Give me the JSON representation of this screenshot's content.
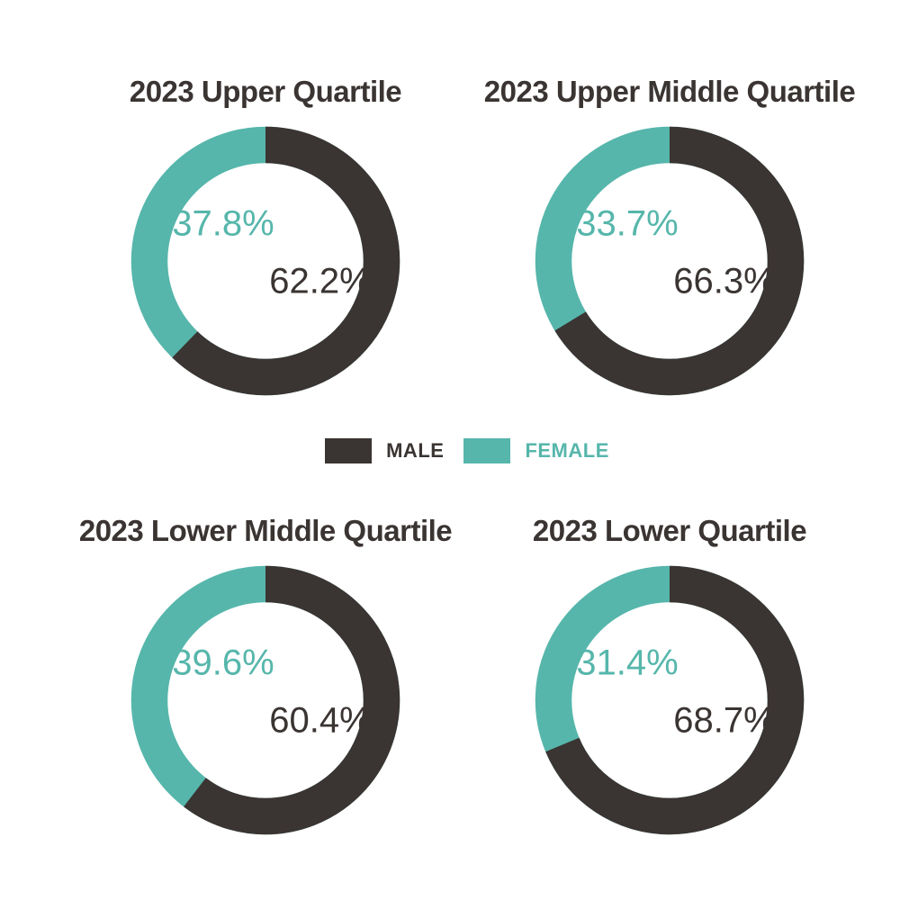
{
  "colors": {
    "male": "#3a3432",
    "female": "#56b6ab",
    "background": "#ffffff"
  },
  "legend": {
    "items": [
      {
        "label": "MALE",
        "color": "#3a3432"
      },
      {
        "label": "FEMALE",
        "color": "#56b6ab"
      }
    ]
  },
  "chart_data": [
    {
      "type": "pie",
      "donut": true,
      "title": "2023 Upper Quartile",
      "categories": [
        "MALE",
        "FEMALE"
      ],
      "values": [
        62.2,
        37.8
      ],
      "labels": {
        "male": "62.2%",
        "female": "37.8%"
      },
      "unit": "%",
      "start_angle": "top",
      "direction": "male-clockwise-from-top",
      "legend_position": "center-between-rows"
    },
    {
      "type": "pie",
      "donut": true,
      "title": "2023 Upper Middle Quartile",
      "categories": [
        "MALE",
        "FEMALE"
      ],
      "values": [
        66.3,
        33.7
      ],
      "labels": {
        "male": "66.3%",
        "female": "33.7%"
      },
      "unit": "%",
      "start_angle": "top",
      "direction": "male-clockwise-from-top",
      "legend_position": "center-between-rows"
    },
    {
      "type": "pie",
      "donut": true,
      "title": "2023 Lower Middle Quartile",
      "categories": [
        "MALE",
        "FEMALE"
      ],
      "values": [
        60.4,
        39.6
      ],
      "labels": {
        "male": "60.4%",
        "female": "39.6%"
      },
      "unit": "%",
      "start_angle": "top",
      "direction": "male-clockwise-from-top",
      "legend_position": "center-between-rows"
    },
    {
      "type": "pie",
      "donut": true,
      "title": "2023 Lower Quartile",
      "categories": [
        "MALE",
        "FEMALE"
      ],
      "values": [
        68.7,
        31.4
      ],
      "labels": {
        "male": "68.7%",
        "female": "31.4%"
      },
      "unit": "%",
      "start_angle": "top",
      "direction": "male-clockwise-from-top",
      "legend_position": "center-between-rows"
    }
  ]
}
